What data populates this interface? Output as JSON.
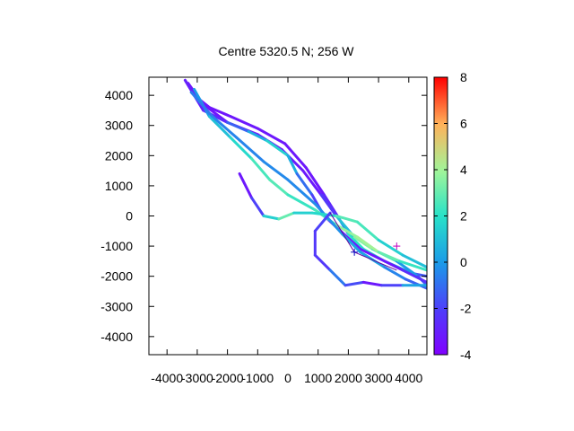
{
  "chart_data": {
    "type": "line",
    "title": "Centre 5320.5 N; 256  W",
    "xlabel": "",
    "ylabel": "",
    "xlim": [
      -4600,
      4600
    ],
    "ylim": [
      -4600,
      4600
    ],
    "x_ticks": [
      -4000,
      -3000,
      -2000,
      -1000,
      0,
      1000,
      2000,
      3000,
      4000
    ],
    "x_tick_labels": [
      "-4000",
      "-3000",
      "-2000",
      "-1000",
      "0",
      "1000",
      "2000",
      "3000",
      "4000"
    ],
    "y_ticks": [
      -4000,
      -3000,
      -2000,
      -1000,
      0,
      1000,
      2000,
      3000,
      4000
    ],
    "y_tick_labels": [
      "-4000",
      "-3000",
      "-2000",
      "-1000",
      "0",
      "1000",
      "2000",
      "3000",
      "4000"
    ],
    "grid": false,
    "colorbar": {
      "range": [
        -4,
        8
      ],
      "ticks": [
        -4,
        -2,
        0,
        2,
        4,
        6,
        8
      ],
      "tick_labels": [
        "-4",
        "-2",
        "0",
        "2",
        "4",
        "6",
        "8"
      ],
      "palette": "rainbow"
    },
    "series": [
      {
        "points": [
          [
            -3400,
            4500,
            -3.5
          ],
          [
            -3100,
            4000,
            -3.5
          ],
          [
            -2600,
            3600,
            -3.2
          ],
          [
            -1900,
            3300,
            -3.5
          ],
          [
            -1000,
            2900,
            -3.0
          ],
          [
            -100,
            2400,
            -3.5
          ],
          [
            600,
            1600,
            -3.0
          ],
          [
            1200,
            700,
            -3.5
          ],
          [
            1700,
            -100,
            -2.0
          ],
          [
            2000,
            -600,
            1.0
          ],
          [
            2500,
            -1100,
            3.0
          ],
          [
            3200,
            -1500,
            1.0
          ],
          [
            4100,
            -1900,
            -1.0
          ],
          [
            4600,
            -2000,
            -2.0
          ]
        ]
      },
      {
        "points": [
          [
            -3300,
            4400,
            -3.5
          ],
          [
            -2800,
            3700,
            -3.2
          ],
          [
            -2000,
            3100,
            -3.5
          ],
          [
            -1000,
            2700,
            -3.0
          ],
          [
            -200,
            2200,
            -3.3
          ],
          [
            500,
            1500,
            -3.0
          ],
          [
            1100,
            700,
            -3.4
          ],
          [
            1600,
            0,
            -1.0
          ],
          [
            2200,
            -700,
            3.0
          ],
          [
            2800,
            -1100,
            4.0
          ],
          [
            3600,
            -1500,
            1.0
          ],
          [
            4300,
            -2000,
            -1.0
          ],
          [
            4600,
            -2300,
            -2.0
          ]
        ]
      },
      {
        "points": [
          [
            -3400,
            4500,
            -3.0
          ],
          [
            -2800,
            3500,
            -3.0
          ],
          [
            -2000,
            3100,
            -2.5
          ],
          [
            -1300,
            2800,
            0.0
          ],
          [
            -700,
            2500,
            1.0
          ],
          [
            0,
            2000,
            2.0
          ],
          [
            300,
            1400,
            -1.0
          ],
          [
            800,
            700,
            -1.0
          ],
          [
            1200,
            0,
            -3.0
          ],
          [
            2400,
            -1100,
            -3.5
          ],
          [
            3800,
            -1800,
            -3.0
          ],
          [
            4600,
            -2200,
            -2.0
          ]
        ]
      },
      {
        "points": [
          [
            -3100,
            4200,
            -0.5
          ],
          [
            -2600,
            3300,
            0.5
          ],
          [
            -1900,
            2600,
            1.5
          ],
          [
            -1200,
            1900,
            2.0
          ],
          [
            -600,
            1200,
            3.0
          ],
          [
            0,
            700,
            2.5
          ],
          [
            900,
            200,
            2.0
          ],
          [
            1600,
            -300,
            3.0
          ],
          [
            2300,
            -700,
            4.5
          ],
          [
            3000,
            -1200,
            3.5
          ],
          [
            3700,
            -1500,
            2.5
          ],
          [
            4600,
            -1800,
            2.0
          ]
        ]
      },
      {
        "points": [
          [
            -3200,
            4100,
            -1.0
          ],
          [
            -2500,
            3300,
            -0.5
          ],
          [
            -1700,
            2600,
            -0.5
          ],
          [
            -800,
            1800,
            -0.5
          ],
          [
            0,
            1200,
            -0.3
          ],
          [
            900,
            400,
            -0.5
          ],
          [
            1800,
            -600,
            0.0
          ],
          [
            2400,
            -1200,
            0.5
          ],
          [
            3200,
            -1700,
            0.0
          ],
          [
            3900,
            -2100,
            -1.0
          ],
          [
            4600,
            -2400,
            -1.5
          ]
        ]
      },
      {
        "points": [
          [
            -1600,
            1400,
            -3.5
          ],
          [
            -1200,
            600,
            -3.0
          ],
          [
            -800,
            0,
            -1.0
          ],
          [
            -300,
            -100,
            4.0
          ],
          [
            200,
            100,
            2.0
          ],
          [
            800,
            100,
            1.0
          ],
          [
            1600,
            0,
            2.5
          ],
          [
            2300,
            -200,
            3.0
          ],
          [
            3000,
            -800,
            2.0
          ],
          [
            3800,
            -1300,
            1.0
          ],
          [
            4600,
            -1700,
            1.0
          ]
        ]
      },
      {
        "points": [
          [
            1400,
            100,
            -3.0
          ],
          [
            900,
            -500,
            -1.0
          ],
          [
            900,
            -1300,
            -3.5
          ],
          [
            1400,
            -1800,
            -1.0
          ],
          [
            1900,
            -2300,
            -0.5
          ],
          [
            2500,
            -2200,
            -3.0
          ],
          [
            3100,
            -2300,
            -3.5
          ],
          [
            3800,
            -2300,
            -0.5
          ],
          [
            4600,
            -2300,
            1.0
          ]
        ]
      }
    ],
    "markers": [
      {
        "x": 2200,
        "y": -1200,
        "symbol": "+",
        "color": "#0000c0"
      },
      {
        "x": 3600,
        "y": -1000,
        "symbol": "+",
        "color": "#c000c0"
      }
    ],
    "connector_lines": [
      {
        "from": [
          1400,
          100
        ],
        "to": [
          2200,
          -1200
        ],
        "color": "#6000a0"
      },
      {
        "from": [
          2200,
          -1200
        ],
        "to": [
          3600,
          -1800
        ],
        "color": "#6000a0"
      }
    ]
  }
}
